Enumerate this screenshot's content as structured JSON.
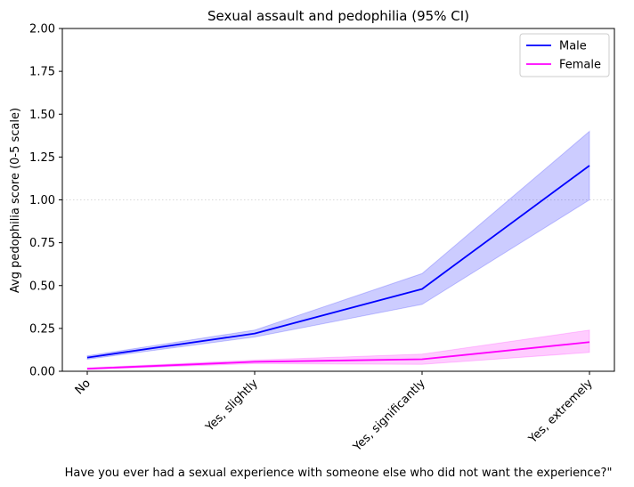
{
  "chart_data": {
    "type": "line",
    "title": "Sexual assault and pedophilia (95% CI)",
    "xlabel": "Have you ever had a sexual experience with someone else who did not want the experience?\"",
    "ylabel": "Avg pedophilia score (0-5 scale)",
    "categories": [
      "No",
      "Yes, slightly",
      "Yes, significantly",
      "Yes, extremely"
    ],
    "ylim": [
      0,
      2.0
    ],
    "yticks": [
      "0.00",
      "0.25",
      "0.50",
      "0.75",
      "1.00",
      "1.25",
      "1.50",
      "1.75",
      "2.00"
    ],
    "grid": "horizontal dotted line at 1.00",
    "legend_position": "top-right",
    "series": [
      {
        "name": "Male",
        "color": "#0000ff",
        "values": [
          0.08,
          0.22,
          0.48,
          1.2
        ],
        "ci_lower": [
          0.07,
          0.2,
          0.39,
          1.0
        ],
        "ci_upper": [
          0.09,
          0.24,
          0.57,
          1.4
        ]
      },
      {
        "name": "Female",
        "color": "#ff00ff",
        "values": [
          0.015,
          0.055,
          0.07,
          0.17
        ],
        "ci_lower": [
          0.01,
          0.045,
          0.04,
          0.11
        ],
        "ci_upper": [
          0.02,
          0.065,
          0.1,
          0.24
        ]
      }
    ]
  }
}
